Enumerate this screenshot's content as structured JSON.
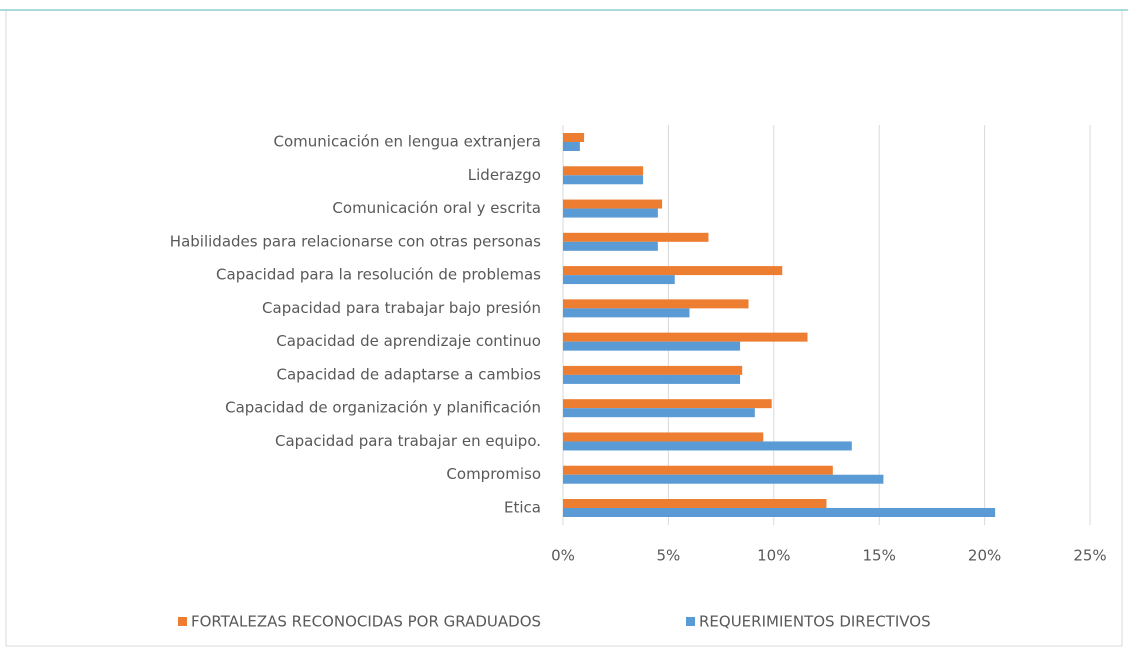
{
  "chart_data": {
    "type": "hbar",
    "categories": [
      "Comunicación en lengua extranjera",
      "Liderazgo",
      "Comunicación oral y escrita",
      "Habilidades para relacionarse con otras personas",
      "Capacidad para la resolución de problemas",
      "Capacidad para trabajar bajo presión",
      "Capacidad de aprendizaje continuo",
      "Capacidad de adaptarse a cambios",
      "Capacidad de organización y planificación",
      "Capacidad para trabajar en equipo.",
      "Compromiso",
      "Etica"
    ],
    "series": [
      {
        "name": "FORTALEZAS RECONOCIDAS POR GRADUADOS",
        "color": "#ed7d31",
        "values": [
          1.0,
          3.8,
          4.7,
          6.9,
          10.4,
          8.8,
          11.6,
          8.5,
          9.9,
          9.5,
          12.8,
          12.5
        ]
      },
      {
        "name": "REQUERIMIENTOS DIRECTIVOS",
        "color": "#5b9bd5",
        "values": [
          0.8,
          3.8,
          4.5,
          4.5,
          5.3,
          6.0,
          8.4,
          8.4,
          9.1,
          13.7,
          15.2,
          20.5
        ]
      }
    ],
    "xlim": [
      0,
      25
    ],
    "xticks": [
      {
        "value": 0,
        "label": "0%"
      },
      {
        "value": 5,
        "label": "5%"
      },
      {
        "value": 10,
        "label": "10%"
      },
      {
        "value": 15,
        "label": "15%"
      },
      {
        "value": 20,
        "label": "20%"
      },
      {
        "value": 25,
        "label": "25%"
      }
    ],
    "grid": true,
    "legend": "bottom"
  }
}
